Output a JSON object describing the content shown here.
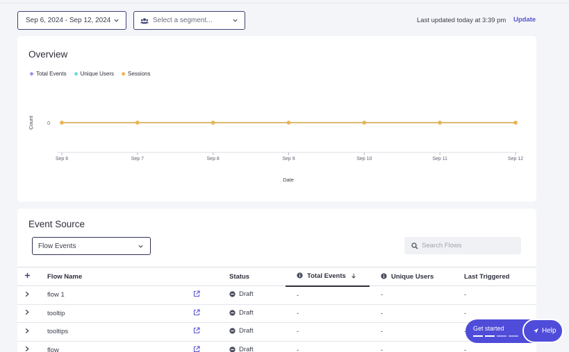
{
  "header": {
    "date_range": "Sep 6, 2024 - Sep 12, 2024",
    "segment_placeholder": "Select a segment...",
    "last_updated": "Last updated today at 3:39 pm",
    "update_label": "Update"
  },
  "overview": {
    "title": "Overview"
  },
  "chart_data": {
    "type": "line",
    "categories": [
      "Sep 6",
      "Sep 7",
      "Sep 8",
      "Sep 9",
      "Sep 10",
      "Sep 11",
      "Sep 12"
    ],
    "series": [
      {
        "name": "Total Events",
        "color": "#9d8fe8",
        "values": [
          0,
          0,
          0,
          0,
          0,
          0,
          0
        ]
      },
      {
        "name": "Unique Users",
        "color": "#72d4dc",
        "values": [
          0,
          0,
          0,
          0,
          0,
          0,
          0
        ]
      },
      {
        "name": "Sessions",
        "color": "#f0b249",
        "values": [
          0,
          0,
          0,
          0,
          0,
          0,
          0
        ]
      }
    ],
    "yticks": [
      "0"
    ],
    "xlabel": "Date",
    "ylabel": "Count",
    "legend": "top-left",
    "grid": false
  },
  "event_source": {
    "title": "Event Source",
    "selected": "Flow Events",
    "search_placeholder": "Search Flows",
    "columns": {
      "flow_name": "Flow Name",
      "status": "Status",
      "total_events": "Total Events",
      "unique_users": "Unique Users",
      "last_triggered": "Last Triggered"
    },
    "rows": [
      {
        "name": "flow 1",
        "status": "Draft",
        "total": "-",
        "users": "-",
        "last": "-"
      },
      {
        "name": "tooltip",
        "status": "Draft",
        "total": "-",
        "users": "-",
        "last": "-"
      },
      {
        "name": "tooltips",
        "status": "Draft",
        "total": "-",
        "users": "-",
        "last": "-"
      },
      {
        "name": "flow",
        "status": "Draft",
        "total": "-",
        "users": "-",
        "last": "-"
      }
    ]
  },
  "widgets": {
    "get_started": "Get started",
    "help": "Help"
  },
  "colors": {
    "accent": "#5553d1",
    "button": "#4f4cd9"
  }
}
